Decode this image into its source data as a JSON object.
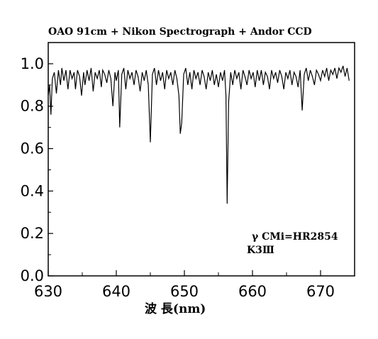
{
  "chart_data": {
    "type": "line",
    "title": "OAO 91cm + Nikon Spectrograph + Andor CCD",
    "xlabel": "波 長(nm)",
    "ylabel": "",
    "xlim": [
      630,
      675
    ],
    "ylim": [
      0.0,
      1.1
    ],
    "xticks": [
      630,
      640,
      650,
      660,
      670
    ],
    "xtick_labels": [
      "630",
      "640",
      "650",
      "660",
      "670"
    ],
    "yticks": [
      0.0,
      0.2,
      0.4,
      0.6,
      0.8,
      1.0
    ],
    "ytick_labels": [
      "0.0",
      "0.2",
      "0.4",
      "0.6",
      "0.8",
      "1.0"
    ],
    "grid": false,
    "annotations": [
      "γ CMi=HR2854",
      "K3Ⅲ"
    ],
    "series": [
      {
        "x": [
          630.0,
          630.2,
          630.4,
          630.6,
          630.9,
          631.2,
          631.5,
          631.8,
          632.0,
          632.3,
          632.6,
          632.9,
          633.2,
          633.5,
          633.8,
          634.0,
          634.3,
          634.6,
          634.9,
          635.2,
          635.4,
          635.7,
          636.0,
          636.3,
          636.6,
          636.9,
          637.2,
          637.5,
          637.8,
          638.0,
          638.3,
          638.6,
          638.9,
          639.2,
          639.5,
          639.8,
          640.0,
          640.3,
          640.5,
          640.8,
          641.1,
          641.4,
          641.7,
          642.0,
          642.3,
          642.6,
          642.9,
          643.2,
          643.5,
          643.8,
          644.1,
          644.4,
          644.7,
          645.0,
          645.3,
          645.6,
          645.9,
          646.2,
          646.5,
          646.8,
          647.1,
          647.4,
          647.7,
          648.0,
          648.3,
          648.6,
          648.9,
          649.2,
          649.4,
          649.6,
          649.9,
          650.2,
          650.5,
          650.8,
          651.1,
          651.4,
          651.7,
          652.0,
          652.3,
          652.6,
          652.9,
          653.2,
          653.5,
          653.8,
          654.1,
          654.4,
          654.7,
          655.0,
          655.3,
          655.6,
          655.9,
          656.1,
          656.28,
          656.5,
          656.8,
          657.1,
          657.4,
          657.7,
          658.0,
          658.3,
          658.6,
          658.9,
          659.2,
          659.5,
          659.8,
          660.1,
          660.4,
          660.7,
          661.0,
          661.3,
          661.6,
          661.9,
          662.2,
          662.5,
          662.8,
          663.1,
          663.4,
          663.7,
          664.0,
          664.3,
          664.6,
          664.9,
          665.2,
          665.5,
          665.8,
          666.1,
          666.4,
          666.7,
          667.0,
          667.3,
          667.6,
          667.9,
          668.2,
          668.5,
          668.8,
          669.1,
          669.4,
          669.7,
          670.0,
          670.3,
          670.6,
          670.9,
          671.2,
          671.5,
          671.8,
          672.1,
          672.4,
          672.7,
          673.0,
          673.3,
          673.6,
          673.9,
          674.2
        ],
        "y": [
          0.85,
          0.9,
          0.76,
          0.93,
          0.96,
          0.86,
          0.97,
          0.9,
          0.98,
          0.92,
          0.97,
          0.88,
          0.97,
          0.93,
          0.96,
          0.88,
          0.97,
          0.94,
          0.85,
          0.96,
          0.9,
          0.97,
          0.92,
          0.98,
          0.87,
          0.96,
          0.93,
          0.97,
          0.89,
          0.97,
          0.95,
          0.91,
          0.97,
          0.93,
          0.8,
          0.96,
          0.92,
          0.97,
          0.7,
          0.95,
          0.98,
          0.88,
          0.97,
          0.93,
          0.96,
          0.9,
          0.97,
          0.94,
          0.87,
          0.96,
          0.92,
          0.97,
          0.9,
          0.63,
          0.95,
          0.98,
          0.9,
          0.97,
          0.92,
          0.96,
          0.88,
          0.97,
          0.93,
          0.96,
          0.9,
          0.97,
          0.93,
          0.85,
          0.67,
          0.72,
          0.95,
          0.98,
          0.9,
          0.96,
          0.88,
          0.97,
          0.93,
          0.96,
          0.9,
          0.97,
          0.94,
          0.88,
          0.96,
          0.92,
          0.97,
          0.9,
          0.95,
          0.89,
          0.96,
          0.92,
          0.97,
          0.85,
          0.34,
          0.82,
          0.96,
          0.9,
          0.97,
          0.93,
          0.96,
          0.88,
          0.97,
          0.94,
          0.9,
          0.97,
          0.93,
          0.96,
          0.89,
          0.97,
          0.92,
          0.97,
          0.9,
          0.96,
          0.94,
          0.88,
          0.97,
          0.93,
          0.96,
          0.91,
          0.97,
          0.94,
          0.88,
          0.96,
          0.93,
          0.97,
          0.9,
          0.96,
          0.94,
          0.89,
          0.97,
          0.78,
          0.95,
          0.98,
          0.92,
          0.97,
          0.94,
          0.9,
          0.97,
          0.95,
          0.92,
          0.97,
          0.94,
          0.98,
          0.92,
          0.97,
          0.95,
          0.98,
          0.93,
          0.98,
          0.96,
          0.99,
          0.94,
          0.98,
          0.92
        ]
      }
    ]
  }
}
